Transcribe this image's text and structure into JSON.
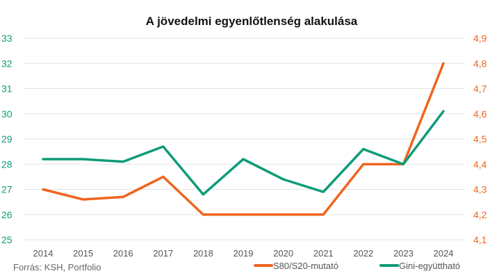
{
  "chart_data": {
    "type": "line",
    "title": "A jövedelmi egyenlőtlenség alakulása",
    "source": "Forrás: KSH, Portfolio",
    "x": [
      "2014",
      "2015",
      "2016",
      "2017",
      "2018",
      "2019",
      "2020",
      "2021",
      "2022",
      "2023",
      "2024"
    ],
    "left_axis": {
      "ylim": [
        25,
        33
      ],
      "ticks": [
        "25",
        "26",
        "27",
        "28",
        "29",
        "30",
        "31",
        "32",
        "33"
      ],
      "color": "#0e9b78"
    },
    "right_axis": {
      "ylim": [
        4.1,
        4.9
      ],
      "ticks": [
        "4,1",
        "4,2",
        "4,3",
        "4,4",
        "4,5",
        "4,6",
        "4,7",
        "4,8",
        "4,9"
      ],
      "color": "#f0641e"
    },
    "series": [
      {
        "name": "S80/S20-mutató",
        "axis": "right",
        "color": "#f0641e",
        "values": [
          4.3,
          4.26,
          4.27,
          4.35,
          4.2,
          4.2,
          4.2,
          4.2,
          4.4,
          4.4,
          4.8
        ]
      },
      {
        "name": "Gini-együttható",
        "axis": "left",
        "color": "#0e9b78",
        "values": [
          28.2,
          28.2,
          28.1,
          28.7,
          26.8,
          28.2,
          27.4,
          26.9,
          28.6,
          28.0,
          30.1
        ]
      }
    ],
    "grid": true,
    "legend_position": "bottom-right"
  }
}
